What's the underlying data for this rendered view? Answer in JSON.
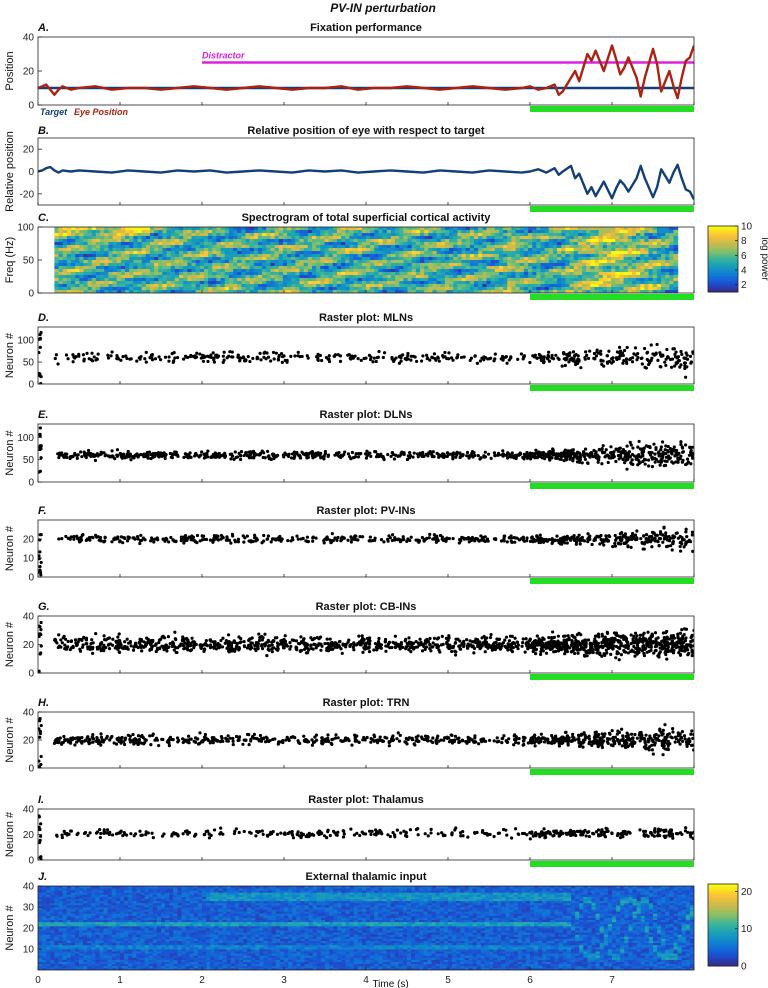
{
  "figure_title": "PV-IN perturbation",
  "green_bar_color": "#22dd22",
  "stim_window": [
    6,
    8
  ],
  "chart_data": [
    {
      "id": "A",
      "letter": "A.",
      "type": "line",
      "title": "Fixation performance",
      "ylabel": "Position",
      "xlim": [
        0,
        8
      ],
      "ylim": [
        0,
        40
      ],
      "yticks": [
        0,
        20,
        40
      ],
      "annotations": [
        {
          "text": "Distractor",
          "color": "#dd22dd"
        },
        {
          "text": "Target",
          "color": "#123f7a"
        },
        {
          "text": "Eye Position",
          "color": "#aa2211"
        }
      ],
      "series": [
        {
          "name": "Distractor",
          "color": "#dd22dd",
          "x": [
            2,
            8
          ],
          "y": [
            25,
            25
          ]
        },
        {
          "name": "Target",
          "color": "#123f7a",
          "x": [
            0,
            8
          ],
          "y": [
            10,
            10
          ]
        },
        {
          "name": "Eye Position",
          "color": "#aa2211",
          "x": [
            0,
            0.05,
            0.1,
            0.15,
            0.2,
            0.25,
            0.3,
            0.4,
            0.5,
            0.7,
            0.9,
            1.1,
            1.3,
            1.5,
            1.7,
            1.9,
            2.1,
            2.3,
            2.5,
            2.7,
            2.9,
            3.1,
            3.3,
            3.5,
            3.7,
            3.9,
            4.1,
            4.3,
            4.5,
            4.7,
            4.9,
            5.1,
            5.3,
            5.5,
            5.7,
            5.9,
            6.0,
            6.1,
            6.2,
            6.3,
            6.35,
            6.4,
            6.5,
            6.55,
            6.6,
            6.7,
            6.75,
            6.8,
            6.9,
            7.0,
            7.05,
            7.1,
            7.15,
            7.2,
            7.3,
            7.35,
            7.4,
            7.5,
            7.55,
            7.6,
            7.7,
            7.75,
            7.8,
            7.85,
            7.9,
            7.95,
            8.0
          ],
          "y": [
            10,
            11,
            12,
            9,
            6,
            9,
            11,
            9,
            10,
            11,
            9,
            10,
            10,
            9,
            10,
            11,
            10,
            9,
            10,
            11,
            10,
            9,
            10,
            10,
            11,
            9,
            10,
            10,
            11,
            10,
            9,
            10,
            11,
            10,
            9,
            10,
            11,
            9,
            10,
            12,
            6,
            8,
            16,
            20,
            14,
            30,
            26,
            32,
            20,
            35,
            27,
            18,
            22,
            28,
            16,
            5,
            16,
            33,
            24,
            8,
            20,
            11,
            4,
            16,
            26,
            28,
            35
          ]
        }
      ]
    },
    {
      "id": "B",
      "letter": "B.",
      "type": "line",
      "title": "Relative position of eye with respect to target",
      "ylabel": "Relative position",
      "xlim": [
        0,
        8
      ],
      "ylim": [
        -30,
        30
      ],
      "yticks": [
        -20,
        0,
        20
      ],
      "series": [
        {
          "name": "Relative",
          "color": "#123f7a",
          "x": [
            0,
            0.05,
            0.1,
            0.15,
            0.2,
            0.25,
            0.3,
            0.4,
            0.5,
            0.7,
            0.9,
            1.1,
            1.3,
            1.5,
            1.7,
            1.9,
            2.1,
            2.3,
            2.5,
            2.7,
            2.9,
            3.1,
            3.3,
            3.5,
            3.7,
            3.9,
            4.1,
            4.3,
            4.5,
            4.7,
            4.9,
            5.1,
            5.3,
            5.5,
            5.7,
            5.9,
            6.0,
            6.1,
            6.2,
            6.3,
            6.35,
            6.4,
            6.5,
            6.55,
            6.6,
            6.7,
            6.75,
            6.8,
            6.9,
            7.0,
            7.05,
            7.1,
            7.15,
            7.2,
            7.3,
            7.35,
            7.4,
            7.5,
            7.55,
            7.6,
            7.7,
            7.75,
            7.8,
            7.85,
            7.9,
            7.95,
            8.0
          ],
          "y": [
            0,
            1,
            3,
            4,
            1,
            -1,
            1,
            0,
            1,
            0,
            -1,
            1,
            0,
            -1,
            1,
            0,
            1,
            -1,
            0,
            1,
            0,
            -1,
            1,
            0,
            1,
            -1,
            0,
            1,
            0,
            -1,
            1,
            0,
            -1,
            1,
            0,
            -1,
            0,
            2,
            -1,
            3,
            -3,
            0,
            5,
            -6,
            -2,
            -20,
            -14,
            -22,
            -9,
            -24,
            -15,
            -8,
            -12,
            -18,
            -6,
            5,
            -6,
            -23,
            -14,
            2,
            -10,
            -1,
            6,
            -6,
            -16,
            -18,
            -25
          ]
        }
      ]
    },
    {
      "id": "C",
      "letter": "C.",
      "type": "heatmap",
      "title": "Spectrogram of total superficial cortical activity",
      "ylabel": "Freq (Hz)",
      "xlim": [
        0,
        8
      ],
      "ylim": [
        0,
        100
      ],
      "yticks": [
        0,
        50,
        100
      ],
      "colorbar": {
        "label": "log power",
        "ticks": [
          2,
          4,
          6,
          8,
          10
        ],
        "range": [
          1,
          10
        ]
      }
    },
    {
      "id": "D",
      "letter": "D.",
      "type": "scatter",
      "title": "Raster plot: MLNs",
      "ylabel": "Neuron #",
      "xlim": [
        0,
        8
      ],
      "ylim": [
        0,
        130
      ],
      "yticks": [
        0,
        50,
        100
      ],
      "band_center": 60,
      "band_width": 8,
      "late_width": 22,
      "density": 0.55
    },
    {
      "id": "E",
      "letter": "E.",
      "type": "scatter",
      "title": "Raster plot: DLNs",
      "ylabel": "Neuron #",
      "xlim": [
        0,
        8
      ],
      "ylim": [
        0,
        130
      ],
      "yticks": [
        0,
        50,
        100
      ],
      "band_center": 60,
      "band_width": 6,
      "late_width": 24,
      "density": 1.0
    },
    {
      "id": "F",
      "letter": "F.",
      "type": "scatter",
      "title": "Raster plot: PV-INs",
      "ylabel": "Neuron #",
      "xlim": [
        0,
        8
      ],
      "ylim": [
        0,
        30
      ],
      "yticks": [
        0,
        10,
        20
      ],
      "band_center": 20,
      "band_width": 1.4,
      "late_width": 4,
      "density": 0.7
    },
    {
      "id": "G",
      "letter": "G.",
      "type": "scatter",
      "title": "Raster plot: CB-INs",
      "ylabel": "Neuron #",
      "xlim": [
        0,
        8
      ],
      "ylim": [
        0,
        40
      ],
      "yticks": [
        0,
        20,
        40
      ],
      "band_center": 20,
      "band_width": 4,
      "late_width": 7,
      "density": 1.6
    },
    {
      "id": "H",
      "letter": "H.",
      "type": "scatter",
      "title": "Raster plot: TRN",
      "ylabel": "Neuron #",
      "xlim": [
        0,
        8
      ],
      "ylim": [
        0,
        40
      ],
      "yticks": [
        0,
        20,
        40
      ],
      "band_center": 20,
      "band_width": 2.5,
      "late_width": 6,
      "density": 0.9
    },
    {
      "id": "I",
      "letter": "I.",
      "type": "scatter",
      "title": "Raster plot: Thalamus",
      "ylabel": "Neuron #",
      "xlim": [
        0,
        8
      ],
      "ylim": [
        0,
        40
      ],
      "yticks": [
        0,
        20,
        40
      ],
      "band_center": 21,
      "band_width": 2.5,
      "late_width": 3,
      "density": 0.45
    },
    {
      "id": "J",
      "letter": "J.",
      "type": "heatmap",
      "title": "External thalamic input",
      "ylabel": "Neuron #",
      "xlabel": "Time (s)",
      "xlim": [
        0,
        8
      ],
      "ylim": [
        0,
        40
      ],
      "yticks": [
        10,
        20,
        30,
        40
      ],
      "xticks": [
        0,
        1,
        2,
        3,
        4,
        5,
        6,
        7
      ],
      "colorbar": {
        "ticks": [
          0,
          10,
          20
        ],
        "range": [
          0,
          22
        ]
      }
    }
  ]
}
